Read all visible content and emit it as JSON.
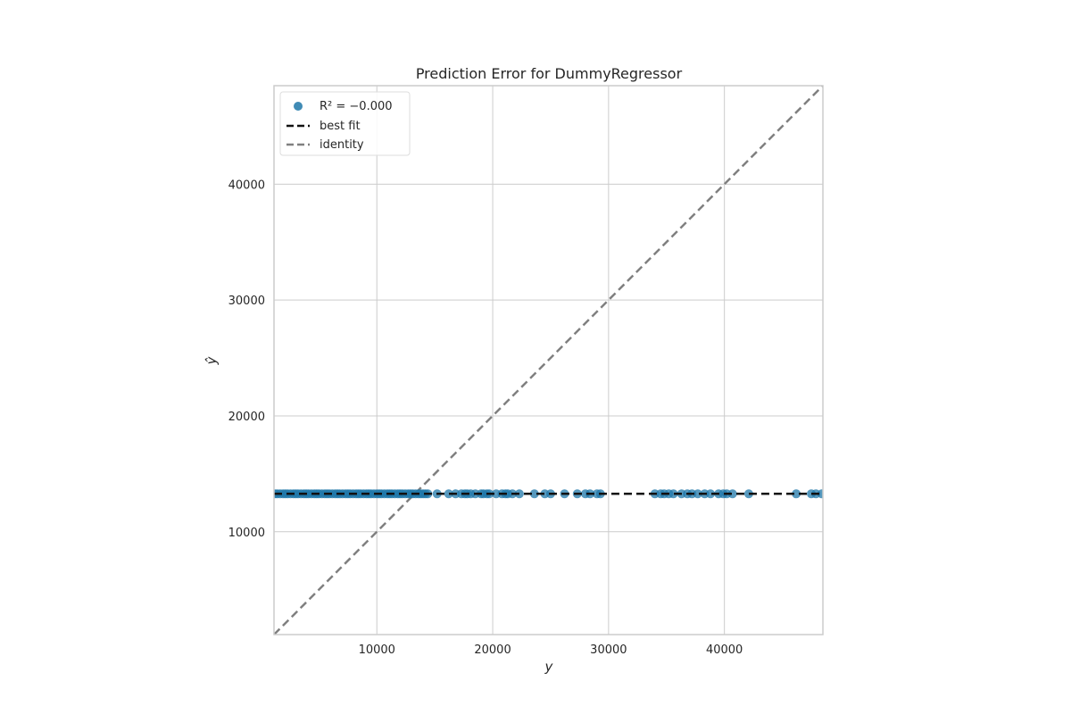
{
  "chart_data": {
    "type": "scatter",
    "title": "Prediction Error for DummyRegressor",
    "xlabel": "y",
    "ylabel": "ŷ",
    "xlim": [
      1122,
      48500
    ],
    "ylim": [
      1122,
      48500
    ],
    "x_ticks": [
      10000,
      20000,
      30000,
      40000
    ],
    "y_ticks": [
      10000,
      20000,
      30000,
      40000
    ],
    "x_tick_labels": [
      "10000",
      "20000",
      "30000",
      "40000"
    ],
    "y_tick_labels": [
      "10000",
      "20000",
      "30000",
      "40000"
    ],
    "grid": true,
    "legend_position": "top-left",
    "legend": {
      "r2_label": "R² = −0.000",
      "best_fit_label": "best fit",
      "identity_label": "identity"
    },
    "predicted_constant": 13270,
    "series": [
      {
        "name": "R² = −0.000",
        "x": [
          1200,
          1400,
          1650,
          1900,
          2100,
          2300,
          2550,
          2800,
          3000,
          3200,
          3450,
          3700,
          3900,
          4100,
          4350,
          4600,
          4800,
          5000,
          5250,
          5500,
          5700,
          5900,
          6150,
          6400,
          6600,
          6800,
          7050,
          7300,
          7500,
          7700,
          7950,
          8200,
          8400,
          8600,
          8850,
          9100,
          9300,
          9500,
          9750,
          10000,
          10200,
          10400,
          10650,
          10900,
          11100,
          11300,
          11550,
          11800,
          12000,
          12200,
          12450,
          12700,
          12900,
          13100,
          13350,
          13600,
          13800,
          14000,
          14200,
          14400,
          15200,
          16200,
          16800,
          17300,
          17600,
          17800,
          18100,
          18500,
          19000,
          19200,
          19500,
          19700,
          20300,
          20800,
          21100,
          21300,
          21700,
          22300,
          23600,
          24500,
          25000,
          26200,
          27300,
          28000,
          28400,
          29000,
          29300,
          34000,
          34500,
          34800,
          35200,
          35600,
          36300,
          36800,
          37200,
          37700,
          38300,
          38800,
          39500,
          39900,
          40200,
          40700,
          42100,
          46200,
          47500,
          47900,
          48400
        ],
        "y": [
          13270,
          13270,
          13270,
          13270,
          13270,
          13270,
          13270,
          13270,
          13270,
          13270,
          13270,
          13270,
          13270,
          13270,
          13270,
          13270,
          13270,
          13270,
          13270,
          13270,
          13270,
          13270,
          13270,
          13270,
          13270,
          13270,
          13270,
          13270,
          13270,
          13270,
          13270,
          13270,
          13270,
          13270,
          13270,
          13270,
          13270,
          13270,
          13270,
          13270,
          13270,
          13270,
          13270,
          13270,
          13270,
          13270,
          13270,
          13270,
          13270,
          13270,
          13270,
          13270,
          13270,
          13270,
          13270,
          13270,
          13270,
          13270,
          13270,
          13270,
          13270,
          13270,
          13270,
          13270,
          13270,
          13270,
          13270,
          13270,
          13270,
          13270,
          13270,
          13270,
          13270,
          13270,
          13270,
          13270,
          13270,
          13270,
          13270,
          13270,
          13270,
          13270,
          13270,
          13270,
          13270,
          13270,
          13270,
          13270,
          13270,
          13270,
          13270,
          13270,
          13270,
          13270,
          13270,
          13270,
          13270,
          13270,
          13270,
          13270,
          13270,
          13270,
          13270,
          13270,
          13270,
          13270,
          13270
        ]
      }
    ],
    "best_fit": {
      "x": [
        1122,
        48500
      ],
      "y": [
        13270,
        13270
      ]
    },
    "identity": {
      "x": [
        1122,
        48500
      ],
      "y": [
        1122,
        48500
      ]
    },
    "colors": {
      "points": "#1f77a8",
      "best_fit": "#111111",
      "identity": "#808080",
      "grid": "#cccccc",
      "frame": "#cccccc"
    }
  }
}
